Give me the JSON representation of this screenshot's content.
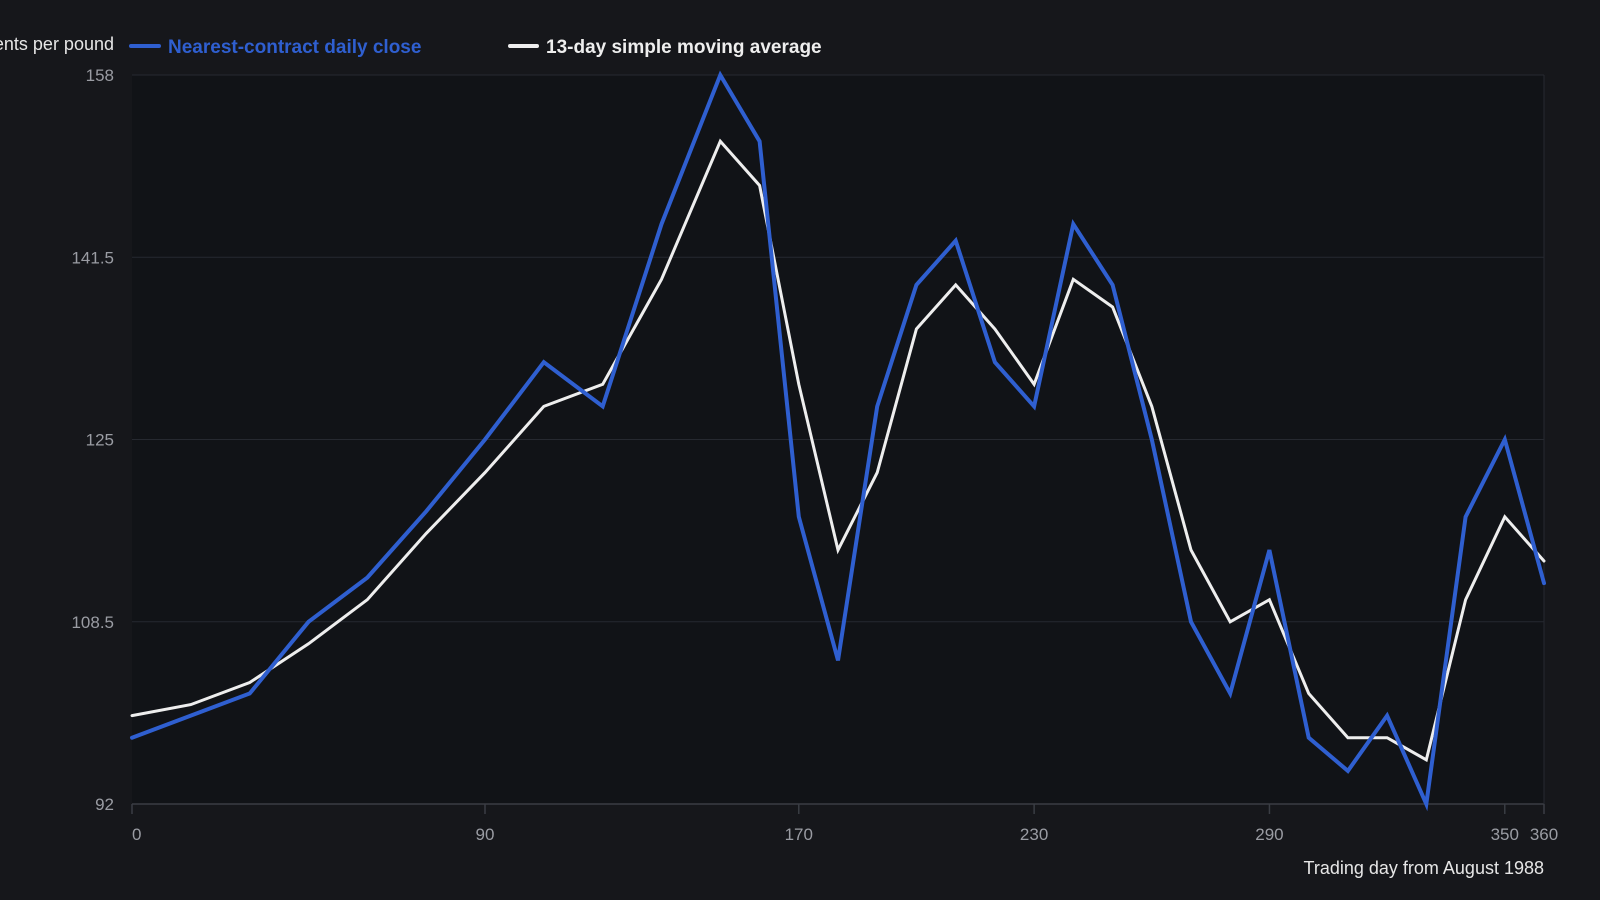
{
  "chart_data": {
    "type": "line",
    "title": "",
    "xlabel": "Trading day from August 1988",
    "ylabel": "US cents per pound",
    "xlim": [
      0,
      360
    ],
    "ylim": [
      92,
      158
    ],
    "x_ticks": [
      0,
      90,
      170,
      230,
      290,
      350,
      360
    ],
    "y_ticks": [
      92,
      108.5,
      125,
      141.5,
      158
    ],
    "grid": "horizontal",
    "legend_position": "top-left",
    "x": [
      0,
      15,
      30,
      45,
      60,
      75,
      90,
      105,
      120,
      135,
      150,
      160,
      170,
      180,
      190,
      200,
      210,
      220,
      230,
      240,
      250,
      260,
      270,
      280,
      290,
      300,
      310,
      320,
      330,
      340,
      350,
      360
    ],
    "series": [
      {
        "name": "Nearest-contract daily close",
        "color": "#2f5fd0",
        "values": [
          98,
          100,
          102,
          108.5,
          112.5,
          118.5,
          125,
          132,
          128,
          144.5,
          158,
          152,
          118,
          105,
          128,
          139,
          143,
          132,
          128,
          144.5,
          139,
          125,
          108.5,
          102,
          115,
          98,
          95,
          100,
          92,
          118,
          125,
          112
        ]
      },
      {
        "name": "13-day simple moving average",
        "color": "#eeeeee",
        "values": [
          100,
          101,
          103,
          106.5,
          110.5,
          116.5,
          122,
          128,
          130,
          139.5,
          152,
          148,
          130,
          115,
          122,
          135,
          139,
          135,
          130,
          139.5,
          137,
          128,
          115,
          108.5,
          110.5,
          102,
          98,
          98,
          96,
          110.5,
          118,
          114
        ]
      }
    ]
  },
  "legend": {
    "close_label": "Nearest-contract daily close",
    "sma_label": "13-day simple moving average"
  }
}
